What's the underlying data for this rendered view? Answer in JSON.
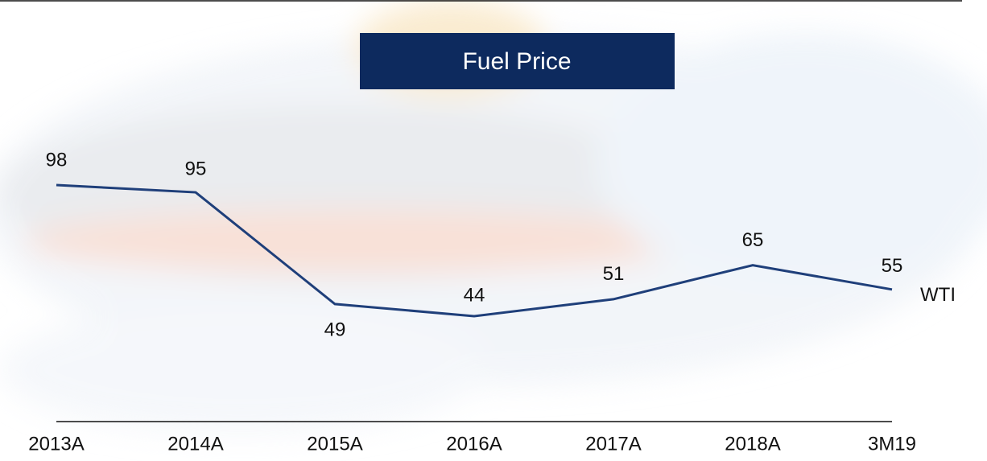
{
  "chart_data": {
    "type": "line",
    "title": "Fuel Price",
    "categories": [
      "2013A",
      "2014A",
      "2015A",
      "2016A",
      "2017A",
      "2018A",
      "3M19"
    ],
    "series": [
      {
        "name": "WTI",
        "color": "#1f3f7a",
        "values": [
          98,
          95,
          49,
          44,
          51,
          65,
          55
        ]
      }
    ]
  }
}
